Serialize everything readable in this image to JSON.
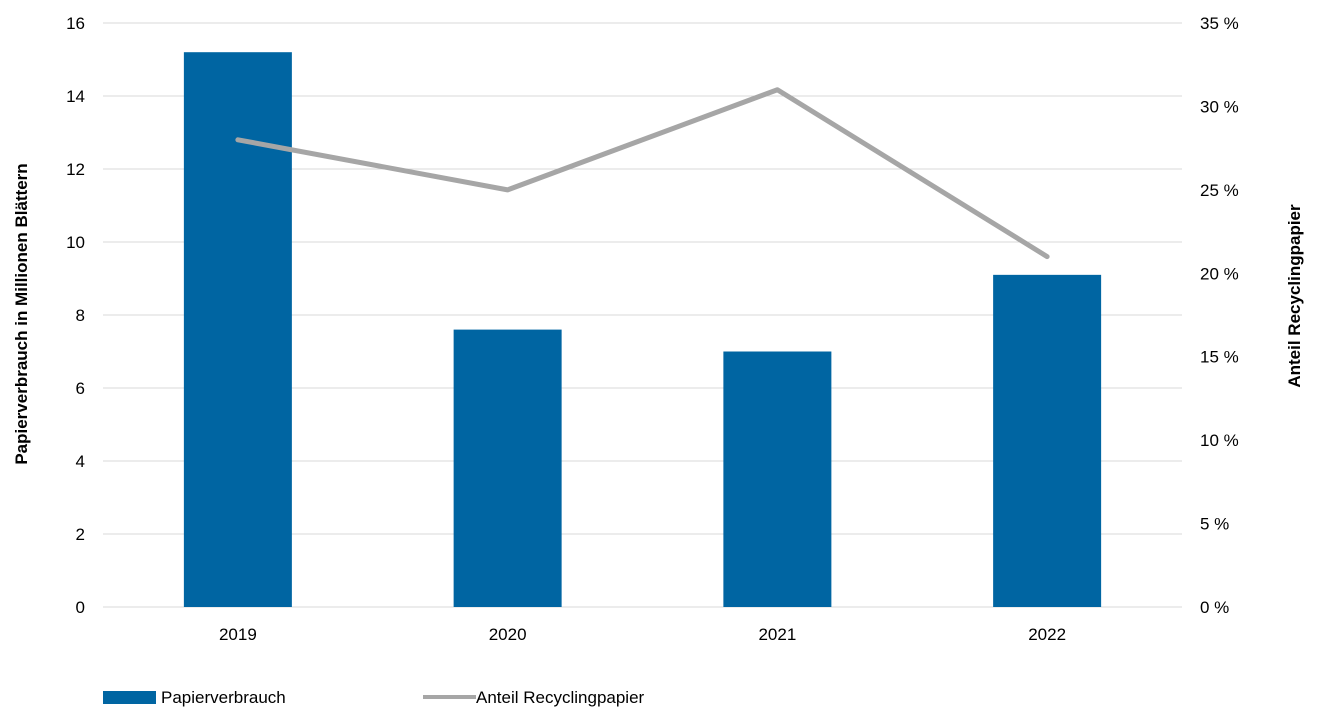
{
  "chart_data": {
    "type": "bar",
    "categories": [
      "2019",
      "2020",
      "2021",
      "2022"
    ],
    "series": [
      {
        "name": "Papierverbrauch",
        "type": "bar",
        "axis": "left",
        "color": "#0065a2",
        "values": [
          15.2,
          7.6,
          7.0,
          9.1
        ]
      },
      {
        "name": "Anteil Recyclingpapier",
        "type": "line",
        "axis": "right",
        "color": "#a6a6a6",
        "values": [
          28.0,
          25.0,
          31.0,
          21.0
        ]
      }
    ],
    "y_left": {
      "label": "Papierverbrauch in Millionen Blättern",
      "lim": [
        0,
        16
      ],
      "ticks": [
        "0",
        "2",
        "4",
        "6",
        "8",
        "10",
        "12",
        "14",
        "16"
      ]
    },
    "y_right": {
      "label": "Anteil Recyclingpapier",
      "lim": [
        0,
        35
      ],
      "ticks": [
        "0 %",
        "5 %",
        "10 %",
        "15 %",
        "20 %",
        "25 %",
        "30 %",
        "35 %"
      ]
    },
    "grid": true,
    "legend_position": "bottom-left"
  }
}
